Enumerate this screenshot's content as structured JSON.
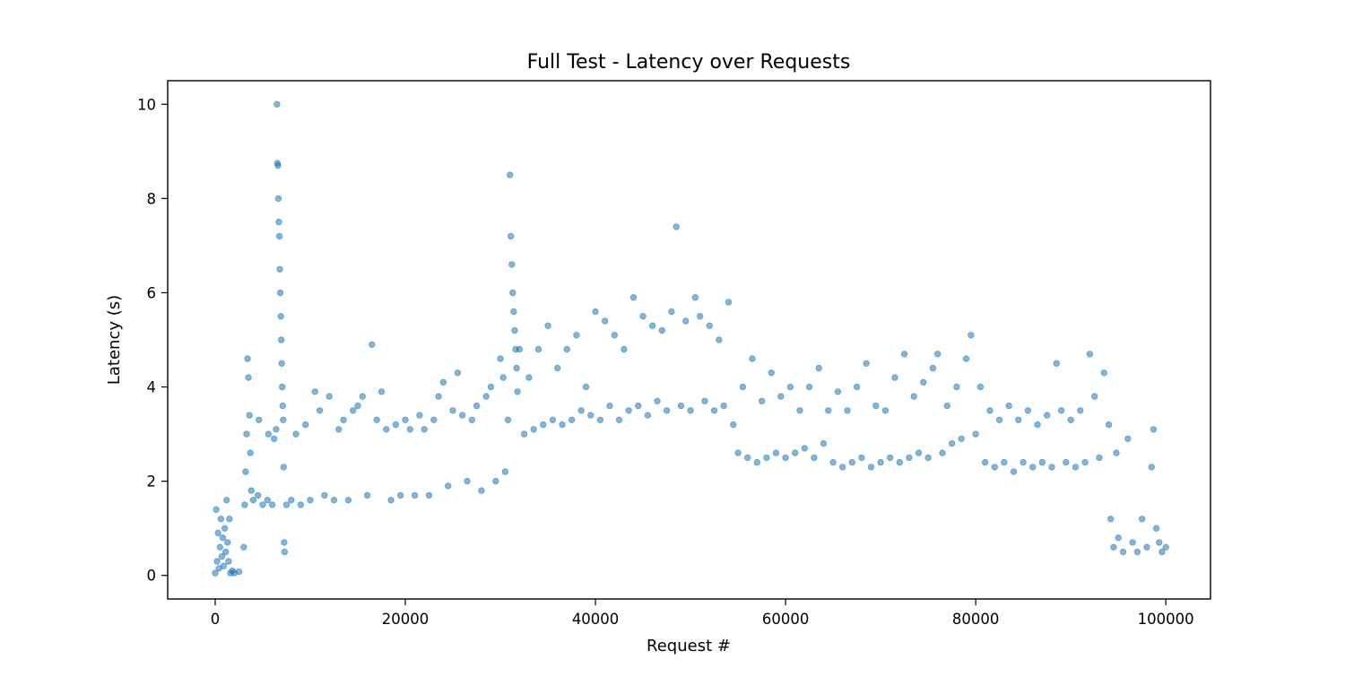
{
  "chart_data": {
    "type": "scatter",
    "title": "Full Test - Latency over Requests",
    "xlabel": "Request #",
    "ylabel": "Latency (s)",
    "xlim": [
      -5000,
      104700
    ],
    "ylim": [
      -0.5,
      10.5
    ],
    "xticks": [
      0,
      20000,
      40000,
      60000,
      80000,
      100000
    ],
    "xtick_labels": [
      "0",
      "20000",
      "40000",
      "60000",
      "80000",
      "100000"
    ],
    "yticks": [
      0,
      2,
      4,
      6,
      8,
      10
    ],
    "ytick_labels": [
      "0",
      "2",
      "4",
      "6",
      "8",
      "10"
    ],
    "grid": false,
    "legend": "none",
    "series_color": "#1f77b4",
    "marker_alpha": 0.55,
    "points": [
      [
        0,
        0.05
      ],
      [
        100,
        1.4
      ],
      [
        200,
        0.3
      ],
      [
        300,
        0.9
      ],
      [
        400,
        0.15
      ],
      [
        500,
        0.6
      ],
      [
        600,
        1.2
      ],
      [
        700,
        0.4
      ],
      [
        800,
        0.8
      ],
      [
        900,
        0.2
      ],
      [
        1000,
        1.0
      ],
      [
        1100,
        0.5
      ],
      [
        1200,
        1.6
      ],
      [
        1300,
        0.7
      ],
      [
        1400,
        0.3
      ],
      [
        1500,
        1.2
      ],
      [
        1600,
        0.05
      ],
      [
        1800,
        0.1
      ],
      [
        2000,
        0.05
      ],
      [
        2500,
        0.08
      ],
      [
        3000,
        0.6
      ],
      [
        3100,
        1.5
      ],
      [
        3200,
        2.2
      ],
      [
        3300,
        3.0
      ],
      [
        3400,
        4.6
      ],
      [
        3500,
        4.2
      ],
      [
        3600,
        3.4
      ],
      [
        3700,
        2.6
      ],
      [
        3800,
        1.8
      ],
      [
        4000,
        1.6
      ],
      [
        4500,
        1.7
      ],
      [
        4600,
        3.3
      ],
      [
        5000,
        1.5
      ],
      [
        5500,
        1.6
      ],
      [
        5600,
        3.0
      ],
      [
        6000,
        1.5
      ],
      [
        6200,
        2.9
      ],
      [
        6400,
        3.1
      ],
      [
        6500,
        10.0
      ],
      [
        6550,
        8.75
      ],
      [
        6600,
        8.7
      ],
      [
        6650,
        8.0
      ],
      [
        6700,
        7.5
      ],
      [
        6750,
        7.2
      ],
      [
        6800,
        6.5
      ],
      [
        6850,
        6.0
      ],
      [
        6900,
        5.5
      ],
      [
        6950,
        5.0
      ],
      [
        7000,
        4.5
      ],
      [
        7050,
        4.0
      ],
      [
        7100,
        3.6
      ],
      [
        7150,
        3.3
      ],
      [
        7200,
        2.3
      ],
      [
        7250,
        0.7
      ],
      [
        7300,
        0.5
      ],
      [
        7500,
        1.5
      ],
      [
        8000,
        1.6
      ],
      [
        8500,
        3.0
      ],
      [
        9000,
        1.5
      ],
      [
        9500,
        3.2
      ],
      [
        10000,
        1.6
      ],
      [
        10500,
        3.9
      ],
      [
        11000,
        3.5
      ],
      [
        11500,
        1.7
      ],
      [
        12000,
        3.8
      ],
      [
        12500,
        1.6
      ],
      [
        13000,
        3.1
      ],
      [
        13500,
        3.3
      ],
      [
        14000,
        1.6
      ],
      [
        14500,
        3.5
      ],
      [
        15000,
        3.6
      ],
      [
        15500,
        3.8
      ],
      [
        16000,
        1.7
      ],
      [
        16500,
        4.9
      ],
      [
        17000,
        3.3
      ],
      [
        17500,
        3.9
      ],
      [
        18000,
        3.1
      ],
      [
        18500,
        1.6
      ],
      [
        19000,
        3.2
      ],
      [
        19500,
        1.7
      ],
      [
        20000,
        3.3
      ],
      [
        20500,
        3.1
      ],
      [
        21000,
        1.7
      ],
      [
        21500,
        3.4
      ],
      [
        22000,
        3.1
      ],
      [
        22500,
        1.7
      ],
      [
        23000,
        3.3
      ],
      [
        23500,
        3.8
      ],
      [
        24000,
        4.1
      ],
      [
        24500,
        1.9
      ],
      [
        25000,
        3.5
      ],
      [
        25500,
        4.3
      ],
      [
        26000,
        3.4
      ],
      [
        26500,
        2.0
      ],
      [
        27000,
        3.3
      ],
      [
        27500,
        3.6
      ],
      [
        28000,
        1.8
      ],
      [
        28500,
        3.8
      ],
      [
        29000,
        4.0
      ],
      [
        29500,
        2.0
      ],
      [
        30000,
        4.6
      ],
      [
        30300,
        4.2
      ],
      [
        30500,
        2.2
      ],
      [
        30800,
        3.3
      ],
      [
        31000,
        8.5
      ],
      [
        31100,
        7.2
      ],
      [
        31200,
        6.6
      ],
      [
        31300,
        6.0
      ],
      [
        31400,
        5.6
      ],
      [
        31500,
        5.2
      ],
      [
        31600,
        4.8
      ],
      [
        31700,
        4.4
      ],
      [
        31800,
        3.9
      ],
      [
        32000,
        4.8
      ],
      [
        32500,
        3.0
      ],
      [
        33000,
        4.2
      ],
      [
        33500,
        3.1
      ],
      [
        34000,
        4.8
      ],
      [
        34500,
        3.2
      ],
      [
        35000,
        5.3
      ],
      [
        35500,
        3.3
      ],
      [
        36000,
        4.4
      ],
      [
        36500,
        3.2
      ],
      [
        37000,
        4.8
      ],
      [
        37500,
        3.3
      ],
      [
        38000,
        5.1
      ],
      [
        38500,
        3.5
      ],
      [
        39000,
        4.0
      ],
      [
        39500,
        3.4
      ],
      [
        40000,
        5.6
      ],
      [
        40500,
        3.3
      ],
      [
        41000,
        5.4
      ],
      [
        41500,
        3.6
      ],
      [
        42000,
        5.1
      ],
      [
        42500,
        3.3
      ],
      [
        43000,
        4.8
      ],
      [
        43500,
        3.5
      ],
      [
        44000,
        5.9
      ],
      [
        44500,
        3.6
      ],
      [
        45000,
        5.5
      ],
      [
        45500,
        3.4
      ],
      [
        46000,
        5.3
      ],
      [
        46500,
        3.7
      ],
      [
        47000,
        5.2
      ],
      [
        47500,
        3.5
      ],
      [
        48000,
        5.6
      ],
      [
        48500,
        7.4
      ],
      [
        49000,
        3.6
      ],
      [
        49500,
        5.4
      ],
      [
        50000,
        3.5
      ],
      [
        50500,
        5.9
      ],
      [
        51000,
        5.5
      ],
      [
        51500,
        3.7
      ],
      [
        52000,
        5.3
      ],
      [
        52500,
        3.5
      ],
      [
        53000,
        5.0
      ],
      [
        53500,
        3.6
      ],
      [
        54000,
        5.8
      ],
      [
        54500,
        3.2
      ],
      [
        55000,
        2.6
      ],
      [
        55500,
        4.0
      ],
      [
        56000,
        2.5
      ],
      [
        56500,
        4.6
      ],
      [
        57000,
        2.4
      ],
      [
        57500,
        3.7
      ],
      [
        58000,
        2.5
      ],
      [
        58500,
        4.3
      ],
      [
        59000,
        2.6
      ],
      [
        59500,
        3.8
      ],
      [
        60000,
        2.5
      ],
      [
        60500,
        4.0
      ],
      [
        61000,
        2.6
      ],
      [
        61500,
        3.5
      ],
      [
        62000,
        2.7
      ],
      [
        62500,
        4.0
      ],
      [
        63000,
        2.5
      ],
      [
        63500,
        4.4
      ],
      [
        64000,
        2.8
      ],
      [
        64500,
        3.5
      ],
      [
        65000,
        2.4
      ],
      [
        65500,
        3.9
      ],
      [
        66000,
        2.3
      ],
      [
        66500,
        3.5
      ],
      [
        67000,
        2.4
      ],
      [
        67500,
        4.0
      ],
      [
        68000,
        2.5
      ],
      [
        68500,
        4.5
      ],
      [
        69000,
        2.3
      ],
      [
        69500,
        3.6
      ],
      [
        70000,
        2.4
      ],
      [
        70500,
        3.5
      ],
      [
        71000,
        2.5
      ],
      [
        71500,
        4.2
      ],
      [
        72000,
        2.4
      ],
      [
        72500,
        4.7
      ],
      [
        73000,
        2.5
      ],
      [
        73500,
        3.8
      ],
      [
        74000,
        2.6
      ],
      [
        74500,
        4.1
      ],
      [
        75000,
        2.5
      ],
      [
        75500,
        4.4
      ],
      [
        76000,
        4.7
      ],
      [
        76500,
        2.6
      ],
      [
        77000,
        3.6
      ],
      [
        77500,
        2.8
      ],
      [
        78000,
        4.0
      ],
      [
        78500,
        2.9
      ],
      [
        79000,
        4.6
      ],
      [
        79500,
        5.1
      ],
      [
        80000,
        3.0
      ],
      [
        80500,
        4.0
      ],
      [
        81000,
        2.4
      ],
      [
        81500,
        3.5
      ],
      [
        82000,
        2.3
      ],
      [
        82500,
        3.3
      ],
      [
        83000,
        2.4
      ],
      [
        83500,
        3.6
      ],
      [
        84000,
        2.2
      ],
      [
        84500,
        3.3
      ],
      [
        85000,
        2.4
      ],
      [
        85500,
        3.5
      ],
      [
        86000,
        2.3
      ],
      [
        86500,
        3.2
      ],
      [
        87000,
        2.4
      ],
      [
        87500,
        3.4
      ],
      [
        88000,
        2.3
      ],
      [
        88500,
        4.5
      ],
      [
        89000,
        3.5
      ],
      [
        89500,
        2.4
      ],
      [
        90000,
        3.3
      ],
      [
        90500,
        2.3
      ],
      [
        91000,
        3.5
      ],
      [
        91500,
        2.4
      ],
      [
        92000,
        4.7
      ],
      [
        92500,
        3.8
      ],
      [
        93000,
        2.5
      ],
      [
        93500,
        4.3
      ],
      [
        94000,
        3.2
      ],
      [
        94200,
        1.2
      ],
      [
        94500,
        0.6
      ],
      [
        94800,
        2.6
      ],
      [
        95000,
        0.8
      ],
      [
        95500,
        0.5
      ],
      [
        96000,
        2.9
      ],
      [
        96500,
        0.7
      ],
      [
        97000,
        0.5
      ],
      [
        97500,
        1.2
      ],
      [
        98000,
        0.6
      ],
      [
        98500,
        2.3
      ],
      [
        98700,
        3.1
      ],
      [
        99000,
        1.0
      ],
      [
        99300,
        0.7
      ],
      [
        99600,
        0.5
      ],
      [
        100000,
        0.6
      ]
    ]
  }
}
